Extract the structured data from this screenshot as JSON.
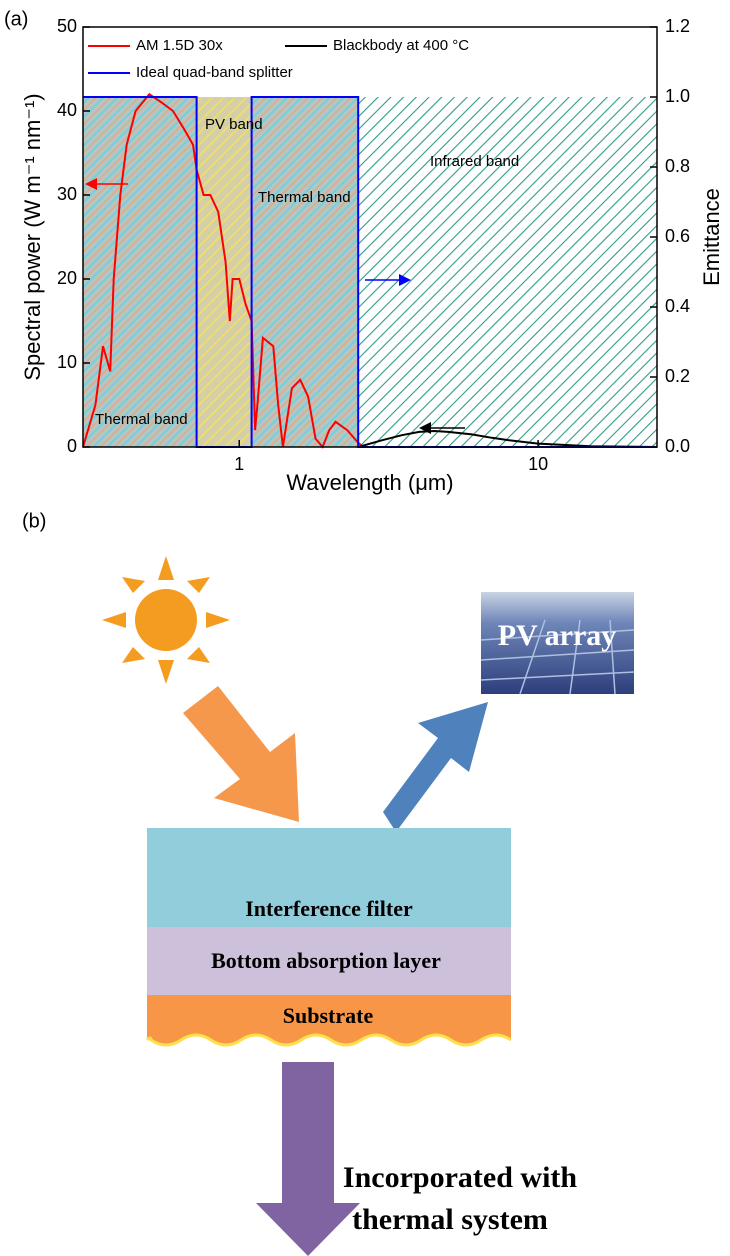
{
  "chart_data": {
    "type": "line",
    "panel_label": "(a)",
    "x_label": "Wavelength (μm)",
    "y_label": "Spectral power (W m⁻¹ nm⁻¹)",
    "y2_label": "Emittance",
    "x_log": true,
    "xlim": [
      0.3,
      25
    ],
    "xticks": [
      1,
      10
    ],
    "ylim": [
      0,
      50
    ],
    "yticks": [
      0,
      10,
      20,
      30,
      40,
      50
    ],
    "y2lim": [
      0,
      1.2
    ],
    "y2ticks": [
      {
        "value": 0,
        "label": "0.0"
      },
      0.2,
      0.4,
      0.6,
      0.8,
      {
        "value": 1,
        "label": "1.0"
      },
      1.2
    ],
    "annotations": [
      "PV band",
      "Thermal band",
      "Infrared band",
      "Thermal band"
    ],
    "series": [
      {
        "name": "AM 1.5D 30x",
        "color": "#ff0000",
        "x": [
          0.3,
          0.33,
          0.35,
          0.37,
          0.38,
          0.4,
          0.42,
          0.45,
          0.5,
          0.55,
          0.6,
          0.65,
          0.7,
          0.72,
          0.76,
          0.8,
          0.85,
          0.9,
          0.93,
          0.95,
          1.0,
          1.05,
          1.1,
          1.13,
          1.15,
          1.2,
          1.3,
          1.35,
          1.4,
          1.5,
          1.6,
          1.7,
          1.8,
          1.9,
          2.0,
          2.1,
          2.3,
          2.5,
          2.6
        ],
        "values": [
          0,
          5,
          12,
          9,
          20,
          30,
          36,
          40,
          42,
          41,
          40,
          38,
          36,
          33,
          30,
          30,
          28,
          22,
          15,
          20,
          20,
          17,
          15,
          2,
          5,
          13,
          12,
          5,
          0,
          7,
          8,
          6,
          1,
          0,
          2,
          3,
          2,
          0.5,
          0
        ]
      },
      {
        "name": "Blackbody at 400 °C",
        "color": "#000000",
        "x": [
          2.5,
          3,
          3.5,
          4,
          4.5,
          5,
          6,
          7,
          8,
          10,
          15,
          25
        ],
        "values": [
          0,
          0.8,
          1.4,
          1.8,
          1.9,
          1.8,
          1.5,
          1.1,
          0.8,
          0.4,
          0.1,
          0
        ]
      },
      {
        "name": "Ideal quad-band splitter",
        "color": "#0000ff",
        "axis": "y2",
        "x": [
          0.3,
          0.72,
          0.72,
          1.1,
          1.1,
          2.5,
          2.5,
          25
        ],
        "values": [
          1,
          1,
          0,
          0,
          1,
          1,
          0,
          0
        ]
      }
    ]
  },
  "diagram": {
    "panel_label": "(b)",
    "pv_array": "PV array",
    "layers": [
      "Interference filter",
      "Bottom absorption layer",
      "Substrate"
    ],
    "output_lines": [
      "Incorporated with",
      "thermal system"
    ]
  }
}
